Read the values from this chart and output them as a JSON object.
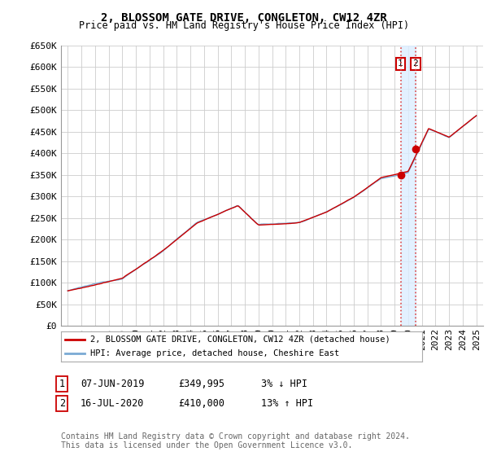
{
  "title": "2, BLOSSOM GATE DRIVE, CONGLETON, CW12 4ZR",
  "subtitle": "Price paid vs. HM Land Registry's House Price Index (HPI)",
  "ylabel_ticks": [
    "£0",
    "£50K",
    "£100K",
    "£150K",
    "£200K",
    "£250K",
    "£300K",
    "£350K",
    "£400K",
    "£450K",
    "£500K",
    "£550K",
    "£600K",
    "£650K"
  ],
  "ytick_values": [
    0,
    50000,
    100000,
    150000,
    200000,
    250000,
    300000,
    350000,
    400000,
    450000,
    500000,
    550000,
    600000,
    650000
  ],
  "xlim_start": 1994.5,
  "xlim_end": 2025.5,
  "ylim_bottom": 0,
  "ylim_top": 650000,
  "hpi_color": "#7aaad4",
  "price_color": "#cc0000",
  "marker1_date_x": 2019.44,
  "marker1_price": 349995,
  "marker2_date_x": 2020.54,
  "marker2_price": 410000,
  "vline_color": "#dd4444",
  "shade_color": "#ddeeff",
  "legend1_label": "2, BLOSSOM GATE DRIVE, CONGLETON, CW12 4ZR (detached house)",
  "legend2_label": "HPI: Average price, detached house, Cheshire East",
  "table_row1": [
    "1",
    "07-JUN-2019",
    "£349,995",
    "3% ↓ HPI"
  ],
  "table_row2": [
    "2",
    "16-JUL-2020",
    "£410,000",
    "13% ↑ HPI"
  ],
  "footer": "Contains HM Land Registry data © Crown copyright and database right 2024.\nThis data is licensed under the Open Government Licence v3.0.",
  "background_color": "#ffffff",
  "grid_color": "#cccccc",
  "title_fontsize": 10,
  "subtitle_fontsize": 8.5,
  "tick_fontsize": 8
}
